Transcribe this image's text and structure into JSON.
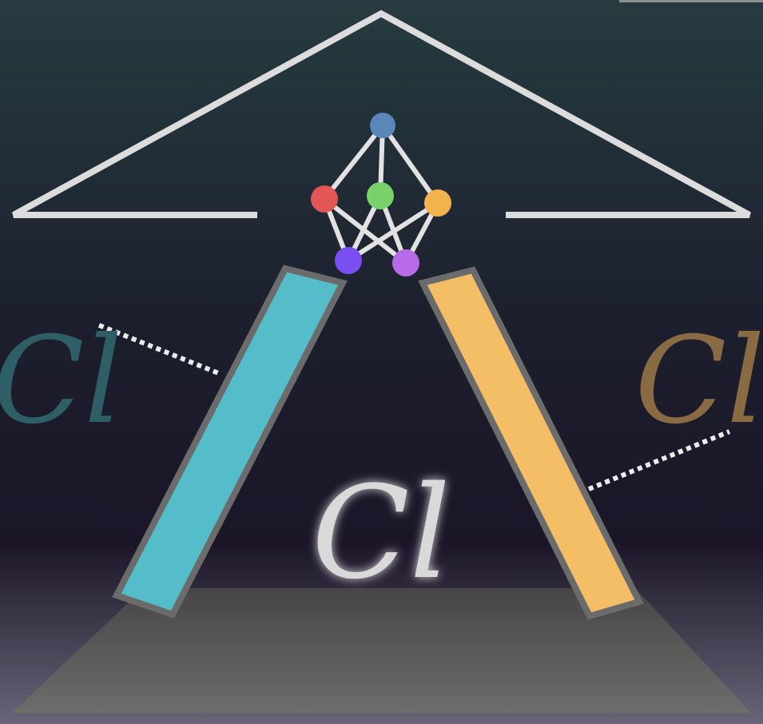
{
  "title": "",
  "glyphs": {
    "left": "Cl",
    "center": "Cl",
    "right": "Cl"
  },
  "colors": {
    "background_top": "#263b40",
    "background_mid": "#1b1a2e",
    "background_bottom": "#6a6478",
    "roof": "#dcdcdc",
    "floor_top": "#474547",
    "floor_bottom": "#6e6d6a",
    "left_pillar": "#55bcc9",
    "right_pillar": "#f3be66",
    "pillar_border": "#6b6b6b",
    "left_glyph": "#2f5f66",
    "right_glyph": "#8a6a43",
    "center_glyph": "#d9d9d9",
    "dotted_line": "#ececec"
  },
  "network": {
    "nodes": [
      {
        "id": "top",
        "color": "#5b86b8"
      },
      {
        "id": "mid-left",
        "color": "#e35656"
      },
      {
        "id": "mid-center",
        "color": "#7ad16a"
      },
      {
        "id": "mid-right",
        "color": "#f2b34f"
      },
      {
        "id": "bottom-left",
        "color": "#7a4ff2"
      },
      {
        "id": "bottom-right",
        "color": "#b86be8"
      }
    ],
    "edge_color": "#e2e2e2"
  },
  "icons": {
    "network": "neural-network-icon",
    "roof": "roof-outline-icon",
    "floor": "floor-trapezoid-icon"
  }
}
